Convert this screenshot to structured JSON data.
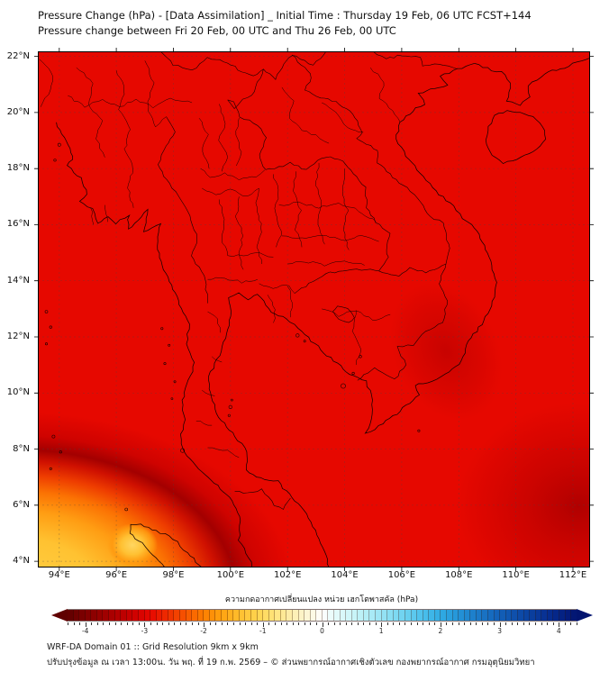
{
  "header": {
    "title_line1": "Pressure Change (hPa) - [Data Assimilation] _ Initial Time : Thursday 19 Feb, 06 UTC FCST+144",
    "title_line2": "Pressure change between Fri 20 Feb, 00 UTC and Thu 26 Feb, 00 UTC"
  },
  "map": {
    "lat_labels": [
      "22°N",
      "20°N",
      "18°N",
      "16°N",
      "14°N",
      "12°N",
      "10°N",
      "8°N",
      "6°N",
      "4°N"
    ],
    "lon_labels": [
      "94°E",
      "96°E",
      "98°E",
      "100°E",
      "102°E",
      "104°E",
      "106°E",
      "108°E",
      "110°E",
      "112°E"
    ]
  },
  "colorbar": {
    "label": "ความกดอากาศเปลี่ยนแปลง หน่วย เฮกโตพาสคัล (hPa)",
    "tick_labels": [
      "-4",
      "-3",
      "-2",
      "-1",
      "0",
      "1",
      "2",
      "3",
      "4"
    ],
    "range": [
      -4.3,
      4.3
    ],
    "cells": 86,
    "stops": [
      [
        -4.3,
        "#600000"
      ],
      [
        -4.0,
        "#7f0000"
      ],
      [
        -3.6,
        "#a50000"
      ],
      [
        -3.2,
        "#cc0000"
      ],
      [
        -2.9,
        "#e60800"
      ],
      [
        -2.6,
        "#ef2e00"
      ],
      [
        -2.3,
        "#f75600"
      ],
      [
        -2.0,
        "#fc7e00"
      ],
      [
        -1.7,
        "#ffa210"
      ],
      [
        -1.4,
        "#ffbe2e"
      ],
      [
        -1.1,
        "#ffd44e"
      ],
      [
        -0.8,
        "#ffe47c"
      ],
      [
        -0.5,
        "#fdeeb0"
      ],
      [
        -0.2,
        "#fdf8dc"
      ],
      [
        0.0,
        "#ffffff"
      ],
      [
        0.2,
        "#e6fbfb"
      ],
      [
        0.5,
        "#cdf5f8"
      ],
      [
        0.8,
        "#aeecf6"
      ],
      [
        1.1,
        "#8ee0f4"
      ],
      [
        1.4,
        "#6cd2f0"
      ],
      [
        1.7,
        "#4cc0ec"
      ],
      [
        2.0,
        "#30ace4"
      ],
      [
        2.3,
        "#2494d8"
      ],
      [
        2.6,
        "#1c7cca"
      ],
      [
        3.0,
        "#1360b8"
      ],
      [
        3.4,
        "#0c47a4"
      ],
      [
        3.8,
        "#072f92"
      ],
      [
        4.1,
        "#041f80"
      ],
      [
        4.3,
        "#021470"
      ]
    ]
  },
  "footer": {
    "line1": "WRF-DA Domain 01 :: Grid Resolution 9km x 9km",
    "line2": "ปรับปรุงข้อมูล ณ เวลา 13:00น. วัน พฤ. ที่ 19 ก.พ. 2569 – © ส่วนพยากรณ์อากาศเชิงตัวเลข กองพยากรณ์อากาศ กรมอุตุนิยมวิทยา"
  },
  "colors": {
    "field_base": "#e60800",
    "coastline": "#140000",
    "dark_anomaly": "#b00000",
    "sw_corner_max": "#ffd24a",
    "grid_line": "#444444"
  },
  "chart_data": {
    "type": "heatmap",
    "title": "Pressure Change (hPa) - [Data Assimilation] _ Initial Time : Thursday 19 Feb, 06 UTC FCST+144",
    "subtitle": "Pressure change between Fri 20 Feb, 00 UTC and Thu 26 Feb, 00 UTC",
    "x": {
      "label": "longitude",
      "ticks": [
        "94°E",
        "96°E",
        "98°E",
        "100°E",
        "102°E",
        "104°E",
        "106°E",
        "108°E",
        "110°E",
        "112°E"
      ],
      "range_deg": [
        93.2,
        112.6
      ]
    },
    "y": {
      "label": "latitude",
      "ticks": [
        "22°N",
        "20°N",
        "18°N",
        "16°N",
        "14°N",
        "12°N",
        "10°N",
        "8°N",
        "6°N",
        "4°N"
      ],
      "range_deg": [
        3.8,
        22.2
      ]
    },
    "colorbar": {
      "label": "ความกดอากาศเปลี่ยนแปลง หน่วย เฮกโตพาสคัล (hPa)",
      "ticks": [
        -4,
        -3,
        -2,
        -1,
        0,
        1,
        2,
        3,
        4
      ],
      "units": "hPa",
      "orientation": "horizontal below map"
    },
    "field_estimates_hpa": [
      {
        "region": "most of domain (Thailand, Laos, Cambodia, Vietnam, Gulf of Thailand)",
        "value": -3.0
      },
      {
        "region": "far southwest corner / seas northwest of Sumatra",
        "value": -1.2
      },
      {
        "region": "local ring minimum west of Aceh near 97.3E 4.7N",
        "value": -1.0
      },
      {
        "region": "dark arc band between red and orange zones in southwest",
        "value": -4.0
      },
      {
        "region": "slightly darker blob over southern Vietnam 106-108E 10-12N",
        "value": -3.4
      },
      {
        "region": "darker blob in southeast corner 109-112.5E 4-7N",
        "value": -3.6
      }
    ],
    "grid": "dashed 2-degree graticule",
    "map_overlay": "coastlines and province/country boundaries of Thailand, Myanmar, Laos, Cambodia, Vietnam, Malay peninsula, Sumatra, Hainan"
  }
}
